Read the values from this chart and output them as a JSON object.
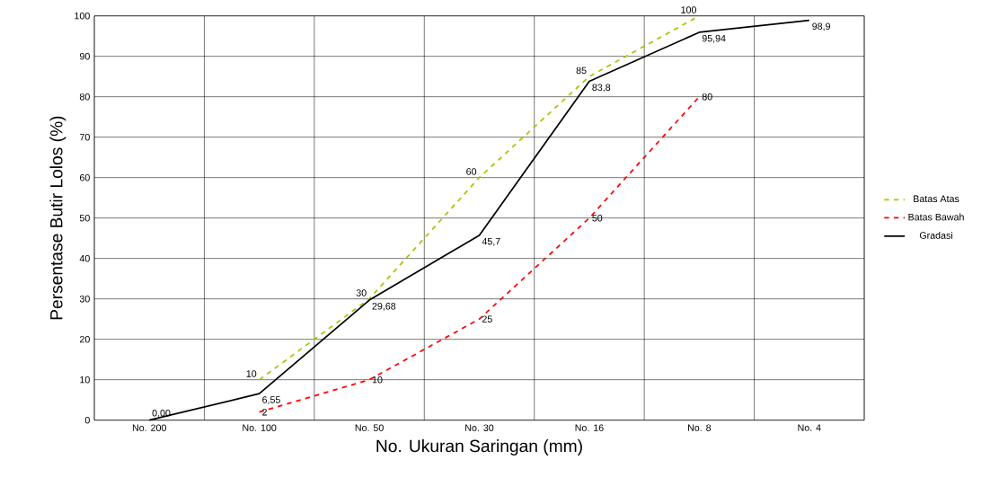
{
  "chart_data": {
    "type": "line",
    "xlabel": "No. Ukuran Saringan (mm)",
    "ylabel": "Persentase Butir Lolos (%)",
    "categories": [
      "No. 200",
      "No. 100",
      "No. 50",
      "No. 30",
      "No. 16",
      "No. 8",
      "No. 4"
    ],
    "series": [
      {
        "name": "Batas Atas",
        "color": "#99cc00",
        "line_style": "dashed",
        "values": [
          null,
          10,
          30,
          60,
          85,
          100,
          null
        ],
        "value_labels": [
          null,
          "10",
          "30",
          "60",
          "85",
          "100",
          null
        ]
      },
      {
        "name": "Batas Bawah",
        "color": "#ff0000",
        "line_style": "dashed",
        "values": [
          null,
          2,
          10,
          25,
          50,
          80,
          null
        ],
        "value_labels": [
          null,
          "2",
          "10",
          "25",
          "50",
          "80",
          null
        ]
      },
      {
        "name": "Gradasi",
        "color": "#000000",
        "line_style": "solid",
        "values": [
          0,
          6.55,
          29.68,
          45.7,
          83.8,
          95.94,
          98.9
        ],
        "value_labels": [
          "0,00",
          "6,55",
          "29,68",
          "45,7",
          "83,8",
          "95,94",
          "98,9"
        ]
      }
    ],
    "ylim": [
      0,
      100
    ],
    "yticks": [
      0,
      10,
      20,
      30,
      40,
      50,
      60,
      70,
      80,
      90,
      100
    ],
    "grid": true,
    "legend": "right",
    "marker": "none"
  }
}
